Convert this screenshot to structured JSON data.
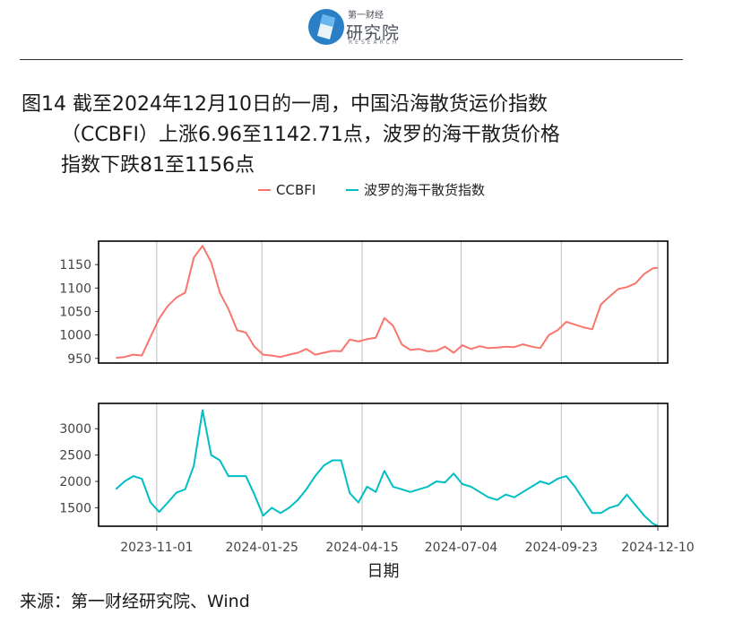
{
  "logo": {
    "top_text": "第一财经",
    "main_text": "研究院",
    "sub_text": "RESEARCH"
  },
  "title": {
    "line1": "图14  截至2024年12月10日的一周，中国沿海散货运价指数",
    "line2": "（CCBFI）上涨6.96至1142.71点，波罗的海干散货价格",
    "line3": "指数下跌81至1156点"
  },
  "source": "来源：第一财经研究院、Wind",
  "colors": {
    "ccbfi": "#F8766D",
    "bdi": "#00BFC4",
    "grid": "#bdbdbd",
    "frame": "#000000"
  },
  "chart_data": {
    "type": "line",
    "xlabel": "日期",
    "x_ticks": [
      "2023-11-01",
      "2024-01-25",
      "2024-04-15",
      "2024-07-04",
      "2024-09-23",
      "2024-12-10"
    ],
    "legend_position": "top",
    "grid": "vertical",
    "panels": [
      {
        "series": [
          {
            "name": "CCBFI",
            "x": [
              "2023-09-29",
              "2023-10-06",
              "2023-10-13",
              "2023-10-20",
              "2023-10-27",
              "2023-11-03",
              "2023-11-10",
              "2023-11-17",
              "2023-11-24",
              "2023-12-01",
              "2023-12-08",
              "2023-12-15",
              "2023-12-22",
              "2023-12-29",
              "2024-01-05",
              "2024-01-12",
              "2024-01-19",
              "2024-01-26",
              "2024-02-02",
              "2024-02-09",
              "2024-02-16",
              "2024-02-23",
              "2024-03-01",
              "2024-03-08",
              "2024-03-15",
              "2024-03-22",
              "2024-03-29",
              "2024-04-05",
              "2024-04-12",
              "2024-04-19",
              "2024-04-26",
              "2024-05-03",
              "2024-05-10",
              "2024-05-17",
              "2024-05-24",
              "2024-05-31",
              "2024-06-07",
              "2024-06-14",
              "2024-06-21",
              "2024-06-28",
              "2024-07-05",
              "2024-07-12",
              "2024-07-19",
              "2024-07-26",
              "2024-08-02",
              "2024-08-09",
              "2024-08-16",
              "2024-08-23",
              "2024-08-30",
              "2024-09-06",
              "2024-09-13",
              "2024-09-20",
              "2024-09-27",
              "2024-10-04",
              "2024-10-11",
              "2024-10-18",
              "2024-10-25",
              "2024-11-01",
              "2024-11-08",
              "2024-11-15",
              "2024-11-22",
              "2024-11-29",
              "2024-12-06",
              "2024-12-10"
            ],
            "values": [
              951,
              953,
              958,
              956,
              996,
              1035,
              1062,
              1080,
              1090,
              1165,
              1190,
              1155,
              1090,
              1055,
              1010,
              1005,
              975,
              958,
              956,
              953,
              958,
              962,
              970,
              958,
              962,
              966,
              965,
              990,
              986,
              991,
              994,
              1036,
              1020,
              980,
              968,
              970,
              965,
              966,
              975,
              962,
              978,
              970,
              976,
              972,
              973,
              975,
              974,
              980,
              975,
              972,
              1000,
              1010,
              1028,
              1022,
              1016,
              1012,
              1065,
              1082,
              1098,
              1102,
              1110,
              1130,
              1142,
              1143
            ]
          }
        ],
        "yticks": [
          950,
          1000,
          1050,
          1100,
          1150
        ],
        "ylim": [
          940,
          1200
        ]
      },
      {
        "series": [
          {
            "name": "波罗的海干散货指数",
            "x": [
              "2023-09-29",
              "2023-10-06",
              "2023-10-13",
              "2023-10-20",
              "2023-10-27",
              "2023-11-03",
              "2023-11-10",
              "2023-11-17",
              "2023-11-24",
              "2023-12-01",
              "2023-12-08",
              "2023-12-15",
              "2023-12-22",
              "2023-12-29",
              "2024-01-05",
              "2024-01-12",
              "2024-01-19",
              "2024-01-26",
              "2024-02-02",
              "2024-02-09",
              "2024-02-16",
              "2024-02-23",
              "2024-03-01",
              "2024-03-08",
              "2024-03-15",
              "2024-03-22",
              "2024-03-29",
              "2024-04-05",
              "2024-04-12",
              "2024-04-19",
              "2024-04-26",
              "2024-05-03",
              "2024-05-10",
              "2024-05-17",
              "2024-05-24",
              "2024-05-31",
              "2024-06-07",
              "2024-06-14",
              "2024-06-21",
              "2024-06-28",
              "2024-07-05",
              "2024-07-12",
              "2024-07-19",
              "2024-07-26",
              "2024-08-02",
              "2024-08-09",
              "2024-08-16",
              "2024-08-23",
              "2024-08-30",
              "2024-09-06",
              "2024-09-13",
              "2024-09-20",
              "2024-09-27",
              "2024-10-04",
              "2024-10-11",
              "2024-10-18",
              "2024-10-25",
              "2024-11-01",
              "2024-11-08",
              "2024-11-15",
              "2024-11-22",
              "2024-11-29",
              "2024-12-06",
              "2024-12-10"
            ],
            "values": [
              1850,
              2000,
              2100,
              2050,
              1600,
              1420,
              1600,
              1790,
              1850,
              2300,
              3350,
              2500,
              2400,
              2100,
              2100,
              2100,
              1750,
              1350,
              1500,
              1400,
              1500,
              1650,
              1850,
              2100,
              2300,
              2400,
              2400,
              1780,
              1600,
              1900,
              1800,
              2200,
              1900,
              1850,
              1800,
              1850,
              1900,
              2000,
              1980,
              2150,
              1950,
              1900,
              1800,
              1700,
              1650,
              1750,
              1700,
              1800,
              1900,
              2000,
              1950,
              2050,
              2100,
              1900,
              1650,
              1400,
              1400,
              1500,
              1550,
              1750,
              1550,
              1350,
              1200,
              1156
            ]
          }
        ],
        "yticks": [
          1500,
          2000,
          2500,
          3000
        ],
        "ylim": [
          1150,
          3480
        ]
      }
    ]
  }
}
